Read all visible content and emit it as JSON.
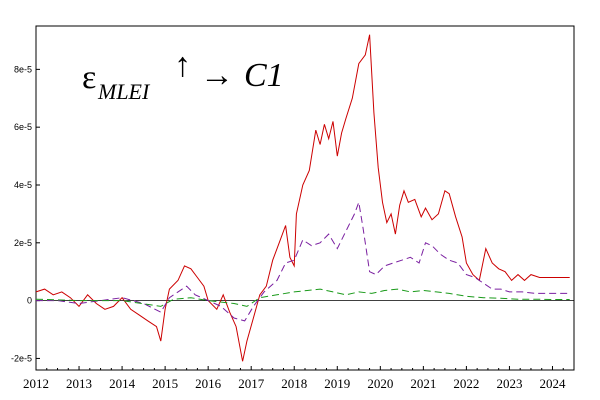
{
  "chart_data": {
    "type": "line",
    "title": "",
    "xlabel": "",
    "ylabel": "",
    "annotation": {
      "symbol": "ε",
      "subscript": "MLEI",
      "arrow_up": "↑",
      "arrow_right": "→",
      "target": "C1"
    },
    "xlim": [
      2012.0,
      2024.5
    ],
    "ylim": [
      -2.4e-05,
      9.5e-05
    ],
    "x_ticks": [
      2012,
      2013,
      2014,
      2015,
      2016,
      2017,
      2018,
      2019,
      2020,
      2021,
      2022,
      2023,
      2024
    ],
    "x_tick_labels": [
      "2012",
      "2013",
      "2014",
      "2015",
      "2016",
      "2017",
      "2018",
      "2019",
      "2020",
      "2021",
      "2022",
      "2023",
      "2024"
    ],
    "y_ticks": [
      -2e-05,
      0,
      2e-05,
      4e-05,
      6e-05,
      8e-05
    ],
    "y_tick_labels": [
      "-2e-5",
      "0",
      "2e-5",
      "4e-5",
      "6e-5",
      "8e-5"
    ],
    "zero_line": true,
    "grid": false,
    "series": [
      {
        "color": "#cc0000",
        "dash": "solid",
        "points": [
          [
            2012.0,
            0.3
          ],
          [
            2012.2,
            0.4
          ],
          [
            2012.4,
            0.2
          ],
          [
            2012.6,
            0.3
          ],
          [
            2012.8,
            0.1
          ],
          [
            2013.0,
            -0.2
          ],
          [
            2013.2,
            0.2
          ],
          [
            2013.4,
            -0.1
          ],
          [
            2013.6,
            -0.3
          ],
          [
            2013.8,
            -0.2
          ],
          [
            2014.0,
            0.1
          ],
          [
            2014.2,
            -0.3
          ],
          [
            2014.4,
            -0.5
          ],
          [
            2014.6,
            -0.7
          ],
          [
            2014.8,
            -0.9
          ],
          [
            2014.9,
            -1.4
          ],
          [
            2015.0,
            -0.3
          ],
          [
            2015.1,
            0.4
          ],
          [
            2015.3,
            0.7
          ],
          [
            2015.45,
            1.2
          ],
          [
            2015.6,
            1.1
          ],
          [
            2015.75,
            0.8
          ],
          [
            2015.9,
            0.5
          ],
          [
            2016.0,
            0.0
          ],
          [
            2016.2,
            -0.3
          ],
          [
            2016.35,
            0.2
          ],
          [
            2016.5,
            -0.4
          ],
          [
            2016.65,
            -0.9
          ],
          [
            2016.8,
            -2.1
          ],
          [
            2016.9,
            -1.4
          ],
          [
            2017.05,
            -0.6
          ],
          [
            2017.2,
            0.2
          ],
          [
            2017.35,
            0.5
          ],
          [
            2017.5,
            1.4
          ],
          [
            2017.65,
            2.0
          ],
          [
            2017.8,
            2.6
          ],
          [
            2017.9,
            1.5
          ],
          [
            2018.0,
            1.2
          ],
          [
            2018.05,
            3.0
          ],
          [
            2018.2,
            4.0
          ],
          [
            2018.35,
            4.5
          ],
          [
            2018.5,
            5.9
          ],
          [
            2018.6,
            5.4
          ],
          [
            2018.7,
            6.1
          ],
          [
            2018.8,
            5.6
          ],
          [
            2018.9,
            6.2
          ],
          [
            2019.0,
            5.0
          ],
          [
            2019.1,
            5.8
          ],
          [
            2019.2,
            6.3
          ],
          [
            2019.35,
            7.0
          ],
          [
            2019.5,
            8.2
          ],
          [
            2019.65,
            8.5
          ],
          [
            2019.75,
            9.2
          ],
          [
            2019.85,
            6.5
          ],
          [
            2019.95,
            4.6
          ],
          [
            2020.05,
            3.4
          ],
          [
            2020.15,
            2.7
          ],
          [
            2020.25,
            3.0
          ],
          [
            2020.35,
            2.3
          ],
          [
            2020.45,
            3.3
          ],
          [
            2020.55,
            3.8
          ],
          [
            2020.65,
            3.4
          ],
          [
            2020.8,
            3.5
          ],
          [
            2020.95,
            2.9
          ],
          [
            2021.05,
            3.2
          ],
          [
            2021.2,
            2.8
          ],
          [
            2021.35,
            3.0
          ],
          [
            2021.5,
            3.8
          ],
          [
            2021.6,
            3.7
          ],
          [
            2021.75,
            2.9
          ],
          [
            2021.9,
            2.2
          ],
          [
            2022.0,
            1.3
          ],
          [
            2022.15,
            0.9
          ],
          [
            2022.3,
            0.7
          ],
          [
            2022.45,
            1.8
          ],
          [
            2022.6,
            1.3
          ],
          [
            2022.75,
            1.1
          ],
          [
            2022.9,
            1.0
          ],
          [
            2023.05,
            0.7
          ],
          [
            2023.2,
            0.9
          ],
          [
            2023.35,
            0.7
          ],
          [
            2023.5,
            0.9
          ],
          [
            2023.7,
            0.8
          ],
          [
            2024.0,
            0.8
          ],
          [
            2024.4,
            0.8
          ]
        ]
      },
      {
        "color": "#7a1fa0",
        "dash": "dashed",
        "points": [
          [
            2012.0,
            0.0
          ],
          [
            2012.5,
            0.0
          ],
          [
            2013.0,
            -0.1
          ],
          [
            2013.5,
            0.0
          ],
          [
            2014.0,
            0.1
          ],
          [
            2014.5,
            -0.1
          ],
          [
            2014.9,
            -0.4
          ],
          [
            2015.1,
            0.1
          ],
          [
            2015.3,
            0.3
          ],
          [
            2015.5,
            0.5
          ],
          [
            2015.7,
            0.2
          ],
          [
            2016.0,
            0.0
          ],
          [
            2016.3,
            -0.2
          ],
          [
            2016.6,
            -0.6
          ],
          [
            2016.85,
            -0.7
          ],
          [
            2017.05,
            -0.2
          ],
          [
            2017.3,
            0.3
          ],
          [
            2017.6,
            0.7
          ],
          [
            2017.8,
            1.3
          ],
          [
            2018.0,
            1.4
          ],
          [
            2018.2,
            2.1
          ],
          [
            2018.4,
            1.9
          ],
          [
            2018.6,
            2.0
          ],
          [
            2018.8,
            2.3
          ],
          [
            2019.0,
            1.8
          ],
          [
            2019.2,
            2.4
          ],
          [
            2019.4,
            3.0
          ],
          [
            2019.5,
            3.4
          ],
          [
            2019.6,
            2.5
          ],
          [
            2019.75,
            1.0
          ],
          [
            2019.9,
            0.9
          ],
          [
            2020.1,
            1.2
          ],
          [
            2020.3,
            1.3
          ],
          [
            2020.5,
            1.4
          ],
          [
            2020.7,
            1.5
          ],
          [
            2020.9,
            1.3
          ],
          [
            2021.05,
            2.0
          ],
          [
            2021.2,
            1.9
          ],
          [
            2021.4,
            1.6
          ],
          [
            2021.6,
            1.4
          ],
          [
            2021.8,
            1.3
          ],
          [
            2022.0,
            0.9
          ],
          [
            2022.2,
            0.8
          ],
          [
            2022.4,
            0.6
          ],
          [
            2022.6,
            0.4
          ],
          [
            2022.8,
            0.4
          ],
          [
            2023.0,
            0.3
          ],
          [
            2023.3,
            0.3
          ],
          [
            2023.6,
            0.25
          ],
          [
            2024.0,
            0.25
          ],
          [
            2024.4,
            0.25
          ]
        ]
      },
      {
        "color": "#1a9a1a",
        "dash": "dashed",
        "points": [
          [
            2012.0,
            0.05
          ],
          [
            2013.0,
            0.0
          ],
          [
            2014.0,
            0.0
          ],
          [
            2014.9,
            -0.2
          ],
          [
            2015.2,
            0.05
          ],
          [
            2015.6,
            0.1
          ],
          [
            2016.0,
            0.0
          ],
          [
            2016.6,
            -0.1
          ],
          [
            2016.9,
            -0.2
          ],
          [
            2017.2,
            0.1
          ],
          [
            2017.6,
            0.2
          ],
          [
            2018.0,
            0.3
          ],
          [
            2018.3,
            0.35
          ],
          [
            2018.6,
            0.4
          ],
          [
            2018.9,
            0.3
          ],
          [
            2019.2,
            0.2
          ],
          [
            2019.5,
            0.3
          ],
          [
            2019.8,
            0.25
          ],
          [
            2020.1,
            0.35
          ],
          [
            2020.4,
            0.4
          ],
          [
            2020.7,
            0.3
          ],
          [
            2021.0,
            0.35
          ],
          [
            2021.3,
            0.3
          ],
          [
            2021.6,
            0.25
          ],
          [
            2022.0,
            0.15
          ],
          [
            2022.4,
            0.1
          ],
          [
            2022.8,
            0.08
          ],
          [
            2023.2,
            0.05
          ],
          [
            2023.6,
            0.05
          ],
          [
            2024.0,
            0.04
          ],
          [
            2024.4,
            0.04
          ]
        ]
      }
    ],
    "y_value_unit_multiplier": 1e-05
  }
}
